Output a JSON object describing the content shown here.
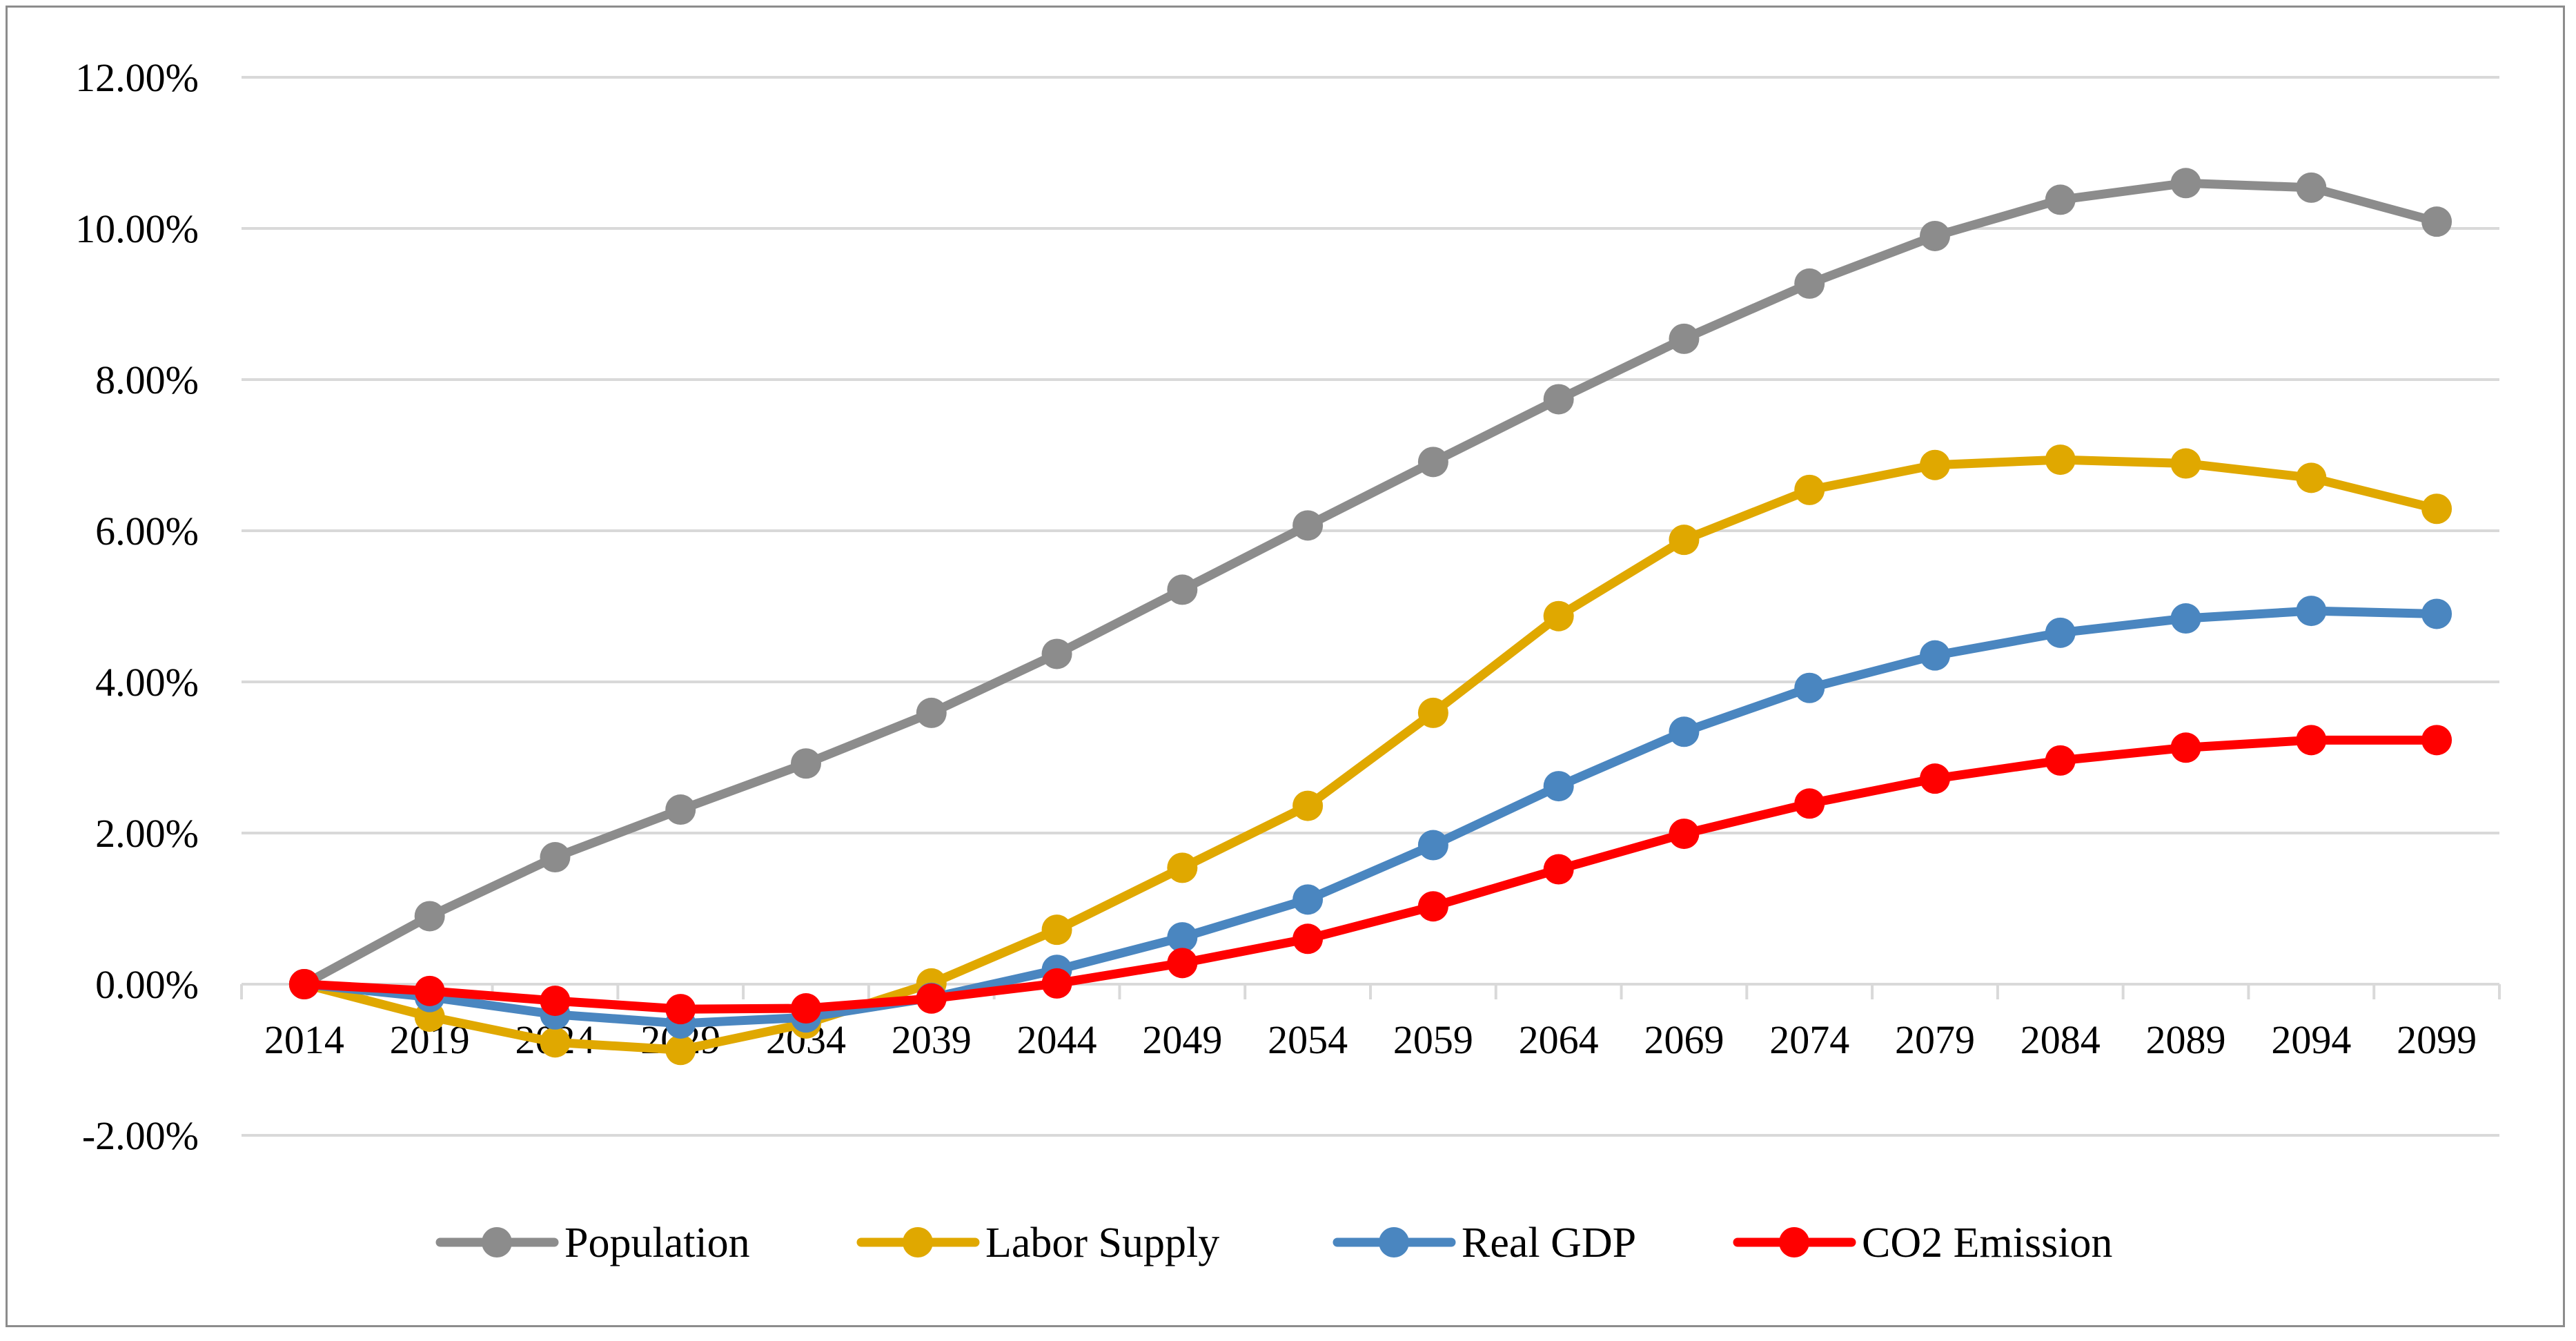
{
  "chart_data": {
    "type": "line",
    "title": "",
    "xlabel": "",
    "ylabel": "",
    "x": [
      "2014",
      "2019",
      "2024",
      "2029",
      "2034",
      "2039",
      "2044",
      "2049",
      "2054",
      "2059",
      "2064",
      "2069",
      "2074",
      "2079",
      "2084",
      "2089",
      "2094",
      "2099"
    ],
    "ylim": [
      -0.02,
      0.12
    ],
    "yticks": [
      -0.02,
      0.0,
      0.02,
      0.04,
      0.06,
      0.08,
      0.1,
      0.12
    ],
    "ytick_labels": [
      "-2.00%",
      "0.00%",
      "2.00%",
      "4.00%",
      "6.00%",
      "8.00%",
      "10.00%",
      "12.00%"
    ],
    "grid": true,
    "legend_position": "bottom",
    "series": [
      {
        "name": "Population",
        "color": "#8c8c8c",
        "values": [
          0.0,
          0.009,
          0.0168,
          0.0231,
          0.0292,
          0.0359,
          0.0437,
          0.0522,
          0.0607,
          0.0691,
          0.0774,
          0.0854,
          0.0927,
          0.099,
          0.1038,
          0.106,
          0.1054,
          0.1009
        ]
      },
      {
        "name": "Labor Supply",
        "color": "#e0a800",
        "values": [
          0.0,
          -0.0043,
          -0.0077,
          -0.0087,
          -0.0052,
          0.0001,
          0.0072,
          0.0154,
          0.0236,
          0.0359,
          0.0487,
          0.0588,
          0.0654,
          0.0687,
          0.0694,
          0.0689,
          0.067,
          0.0629
        ]
      },
      {
        "name": "Real GDP",
        "color": "#4a86c0",
        "values": [
          0.0,
          -0.0017,
          -0.004,
          -0.0052,
          -0.0044,
          -0.0018,
          0.0019,
          0.0062,
          0.0112,
          0.0184,
          0.0262,
          0.0334,
          0.0392,
          0.0435,
          0.0465,
          0.0484,
          0.0494,
          0.049
        ]
      },
      {
        "name": "CO2 Emission",
        "color": "#ff0000",
        "values": [
          0.0,
          -0.0009,
          -0.0022,
          -0.0033,
          -0.0032,
          -0.0019,
          0.0001,
          0.0028,
          0.006,
          0.0103,
          0.0152,
          0.0199,
          0.0239,
          0.0272,
          0.0296,
          0.0313,
          0.0323,
          0.0323
        ]
      }
    ]
  }
}
